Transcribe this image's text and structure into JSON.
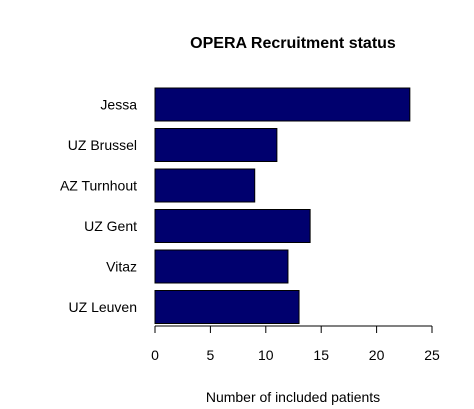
{
  "chart_data": {
    "type": "bar",
    "orientation": "horizontal",
    "title": "OPERA Recruitment status",
    "xlabel": "Number of included patients",
    "ylabel": "",
    "categories": [
      "Jessa",
      "UZ Brussel",
      "AZ Turnhout",
      "UZ Gent",
      "Vitaz",
      "UZ Leuven"
    ],
    "values": [
      23,
      11,
      9,
      14,
      12,
      13
    ],
    "xlim": [
      0,
      25
    ],
    "xticks": [
      "0",
      "5",
      "10",
      "15",
      "20",
      "25"
    ],
    "bar_color": "#00006e",
    "grid": false,
    "legend": "none"
  }
}
